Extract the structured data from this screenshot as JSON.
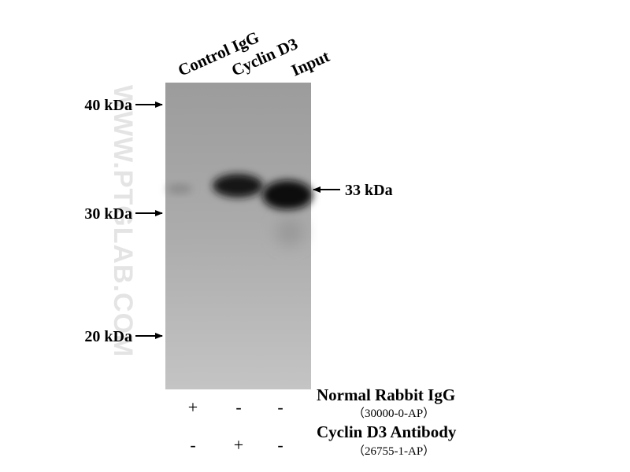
{
  "lanes": [
    "Control IgG",
    "Cyclin D3",
    "Input"
  ],
  "markers": [
    "40 kDa",
    "30 kDa",
    "20 kDa"
  ],
  "band_label": "33 kDa",
  "watermark": "WWW.PTGLAB.COM",
  "conditions": [
    {
      "name": "Normal Rabbit IgG",
      "catalog": "（30000-0-AP）",
      "signs": [
        "+",
        "-",
        "-"
      ]
    },
    {
      "name": "Cyclin D3 Antibody",
      "catalog": "（26755-1-AP）",
      "signs": [
        "-",
        "+",
        "-"
      ]
    }
  ]
}
